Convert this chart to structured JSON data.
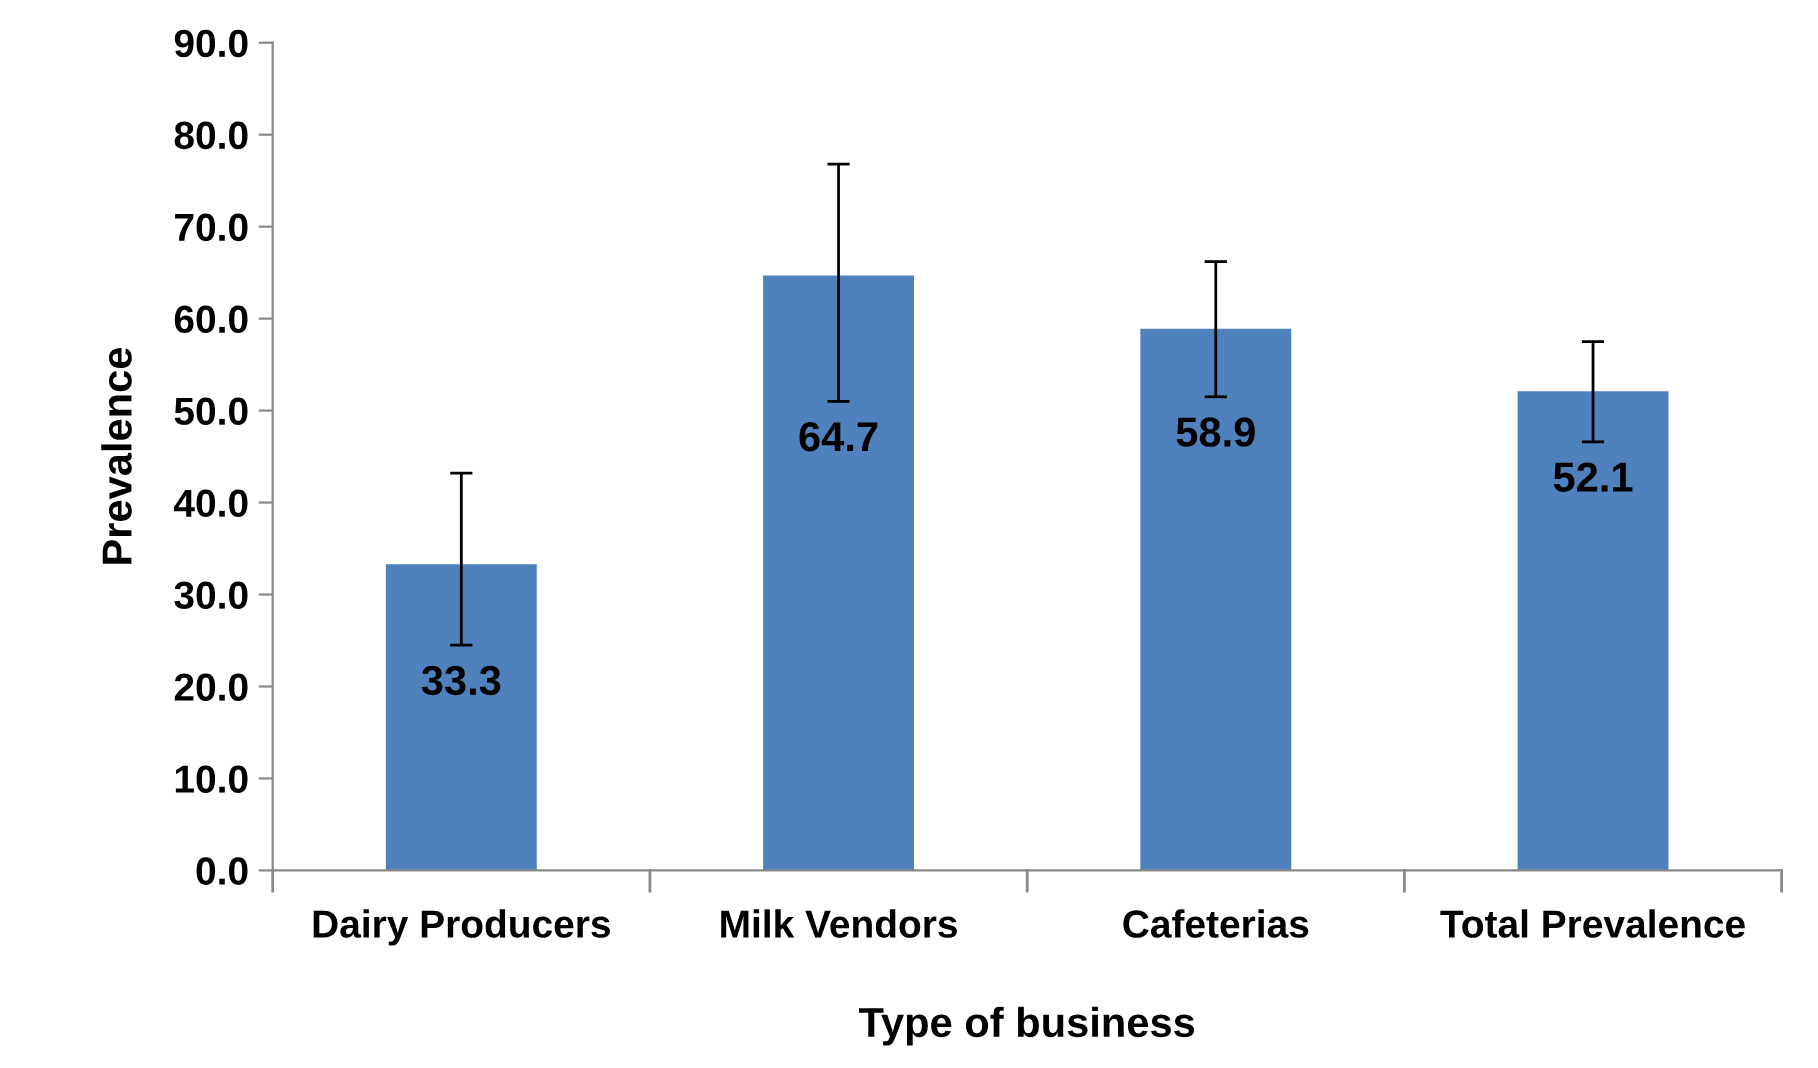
{
  "chart_data": {
    "type": "bar",
    "xlabel": "Type of business",
    "ylabel": "Prevalence",
    "categories": [
      "Dairy Producers",
      "Milk Vendors",
      "Cafeterias",
      "Total Prevalence"
    ],
    "values": [
      33.3,
      64.7,
      58.9,
      52.1
    ],
    "errors": [
      [
        24.5,
        43.2
      ],
      [
        51.0,
        76.8
      ],
      [
        51.5,
        66.2
      ],
      [
        46.6,
        57.5
      ]
    ],
    "color": "#4f81bd",
    "ylim": [
      0,
      90
    ],
    "yticks": [
      {
        "value": 0,
        "label": "0.0"
      },
      {
        "value": 10,
        "label": "10.0"
      },
      {
        "value": 20,
        "label": "20.0"
      },
      {
        "value": 30,
        "label": "30.0"
      },
      {
        "value": 40,
        "label": "40.0"
      },
      {
        "value": 50,
        "label": "50.0"
      },
      {
        "value": 60,
        "label": "60.0"
      },
      {
        "value": 70,
        "label": "70.0"
      },
      {
        "value": 80,
        "label": "80.0"
      },
      {
        "value": 90,
        "label": "90.0"
      }
    ],
    "grid": false,
    "legend": false,
    "data_labels": true
  }
}
